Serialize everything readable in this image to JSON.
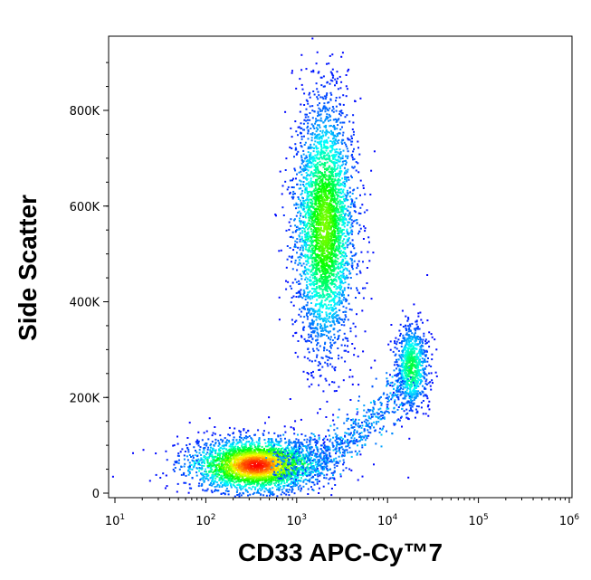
{
  "chart_data": {
    "type": "scatter",
    "title": "",
    "xlabel": "CD33 APC-Cy™ 7",
    "ylabel": "Side Scatter",
    "x_scale": "log",
    "xlim": [
      10,
      1000000
    ],
    "ylim": [
      -10000,
      950000
    ],
    "x_ticks": [
      {
        "value": 10,
        "base": "10",
        "exp": "1"
      },
      {
        "value": 100,
        "base": "10",
        "exp": "2"
      },
      {
        "value": 1000,
        "base": "10",
        "exp": "3"
      },
      {
        "value": 10000,
        "base": "10",
        "exp": "4"
      },
      {
        "value": 100000,
        "base": "10",
        "exp": "5"
      },
      {
        "value": 1000000,
        "base": "10",
        "exp": "6"
      }
    ],
    "y_ticks": [
      {
        "value": 0,
        "label": "0"
      },
      {
        "value": 200000,
        "label": "200K"
      },
      {
        "value": 400000,
        "label": "400K"
      },
      {
        "value": 600000,
        "label": "600K"
      },
      {
        "value": 800000,
        "label": "800K"
      }
    ],
    "color_scale": [
      "#0000ff",
      "#00ffff",
      "#00ff00",
      "#ffff00",
      "#ff0000"
    ],
    "grid": false,
    "legend": "none",
    "populations": [
      {
        "x_center": 350,
        "y_center": 60000,
        "x_spread_decades": 0.28,
        "y_spread": 28000,
        "events": 3200,
        "peak_density": 1.0
      },
      {
        "x_center": 2000,
        "y_center": 560000,
        "x_spread_decades": 0.13,
        "y_spread": 130000,
        "events": 3600,
        "peak_density": 0.62
      },
      {
        "x_center": 18000,
        "y_center": 265000,
        "x_spread_decades": 0.07,
        "y_spread": 45000,
        "events": 900,
        "peak_density": 0.45
      }
    ]
  }
}
